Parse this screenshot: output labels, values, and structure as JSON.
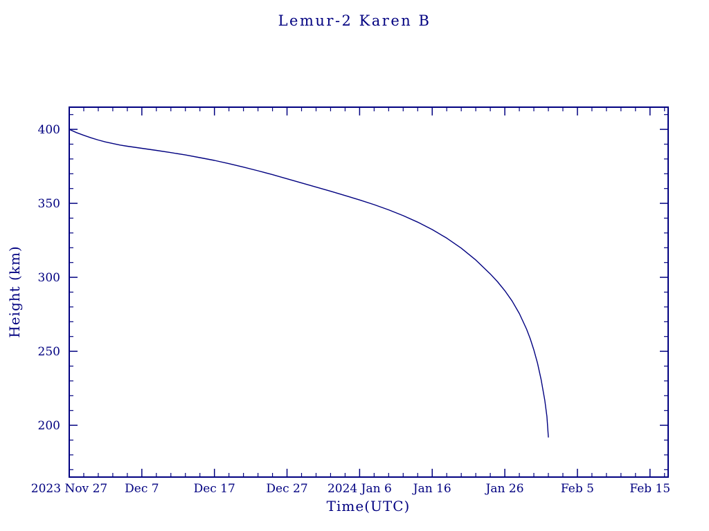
{
  "chart_data": {
    "type": "line",
    "title": "Lemur-2 Karen B",
    "xlabel": "Time(UTC)",
    "ylabel": "Height (km)",
    "axis_color": "#000080",
    "background_color": "#ffffff",
    "grid": false,
    "legend": "none",
    "x_unit": "days since 2023 Nov 27 00:00 UTC",
    "xlim": [
      0,
      82.5
    ],
    "ylim": [
      165,
      415
    ],
    "x_major_ticks": [
      {
        "day": 0,
        "label": "2023 Nov 27"
      },
      {
        "day": 10,
        "label": "Dec 7"
      },
      {
        "day": 20,
        "label": "Dec 17"
      },
      {
        "day": 30,
        "label": "Dec 27"
      },
      {
        "day": 40,
        "label": "2024 Jan 6"
      },
      {
        "day": 50,
        "label": "Jan 16"
      },
      {
        "day": 60,
        "label": "Jan 26"
      },
      {
        "day": 70,
        "label": "Feb 5"
      },
      {
        "day": 80,
        "label": "Feb 15"
      }
    ],
    "x_minor_step_days": 2,
    "y_major_ticks": [
      200,
      250,
      300,
      350,
      400
    ],
    "y_minor_step": 10,
    "series": [
      {
        "name": "Lemur-2 Karen B orbital height",
        "color": "#000080",
        "points": [
          [
            0,
            400.0
          ],
          [
            1,
            397.8
          ],
          [
            2,
            396.0
          ],
          [
            3,
            394.3
          ],
          [
            4,
            392.8
          ],
          [
            5,
            391.5
          ],
          [
            6,
            390.4
          ],
          [
            7,
            389.4
          ],
          [
            8,
            388.6
          ],
          [
            9,
            387.9
          ],
          [
            10,
            387.2
          ],
          [
            12,
            385.8
          ],
          [
            14,
            384.3
          ],
          [
            16,
            382.7
          ],
          [
            18,
            380.9
          ],
          [
            20,
            379.0
          ],
          [
            22,
            376.8
          ],
          [
            24,
            374.5
          ],
          [
            26,
            372.0
          ],
          [
            28,
            369.4
          ],
          [
            30,
            366.6
          ],
          [
            32,
            363.8
          ],
          [
            34,
            361.0
          ],
          [
            36,
            358.2
          ],
          [
            38,
            355.3
          ],
          [
            40,
            352.3
          ],
          [
            42,
            349.1
          ],
          [
            44,
            345.6
          ],
          [
            46,
            341.7
          ],
          [
            48,
            337.3
          ],
          [
            50,
            332.3
          ],
          [
            52,
            326.5
          ],
          [
            54,
            319.7
          ],
          [
            56,
            311.7
          ],
          [
            58,
            302.3
          ],
          [
            59,
            297.0
          ],
          [
            60,
            291.0
          ],
          [
            61,
            284.0
          ],
          [
            62,
            275.5
          ],
          [
            63,
            265.0
          ],
          [
            63.5,
            258.5
          ],
          [
            64,
            251.0
          ],
          [
            64.5,
            242.0
          ],
          [
            65,
            231.0
          ],
          [
            65.5,
            217.0
          ],
          [
            65.8,
            206.0
          ],
          [
            66,
            192.0
          ]
        ]
      }
    ]
  }
}
